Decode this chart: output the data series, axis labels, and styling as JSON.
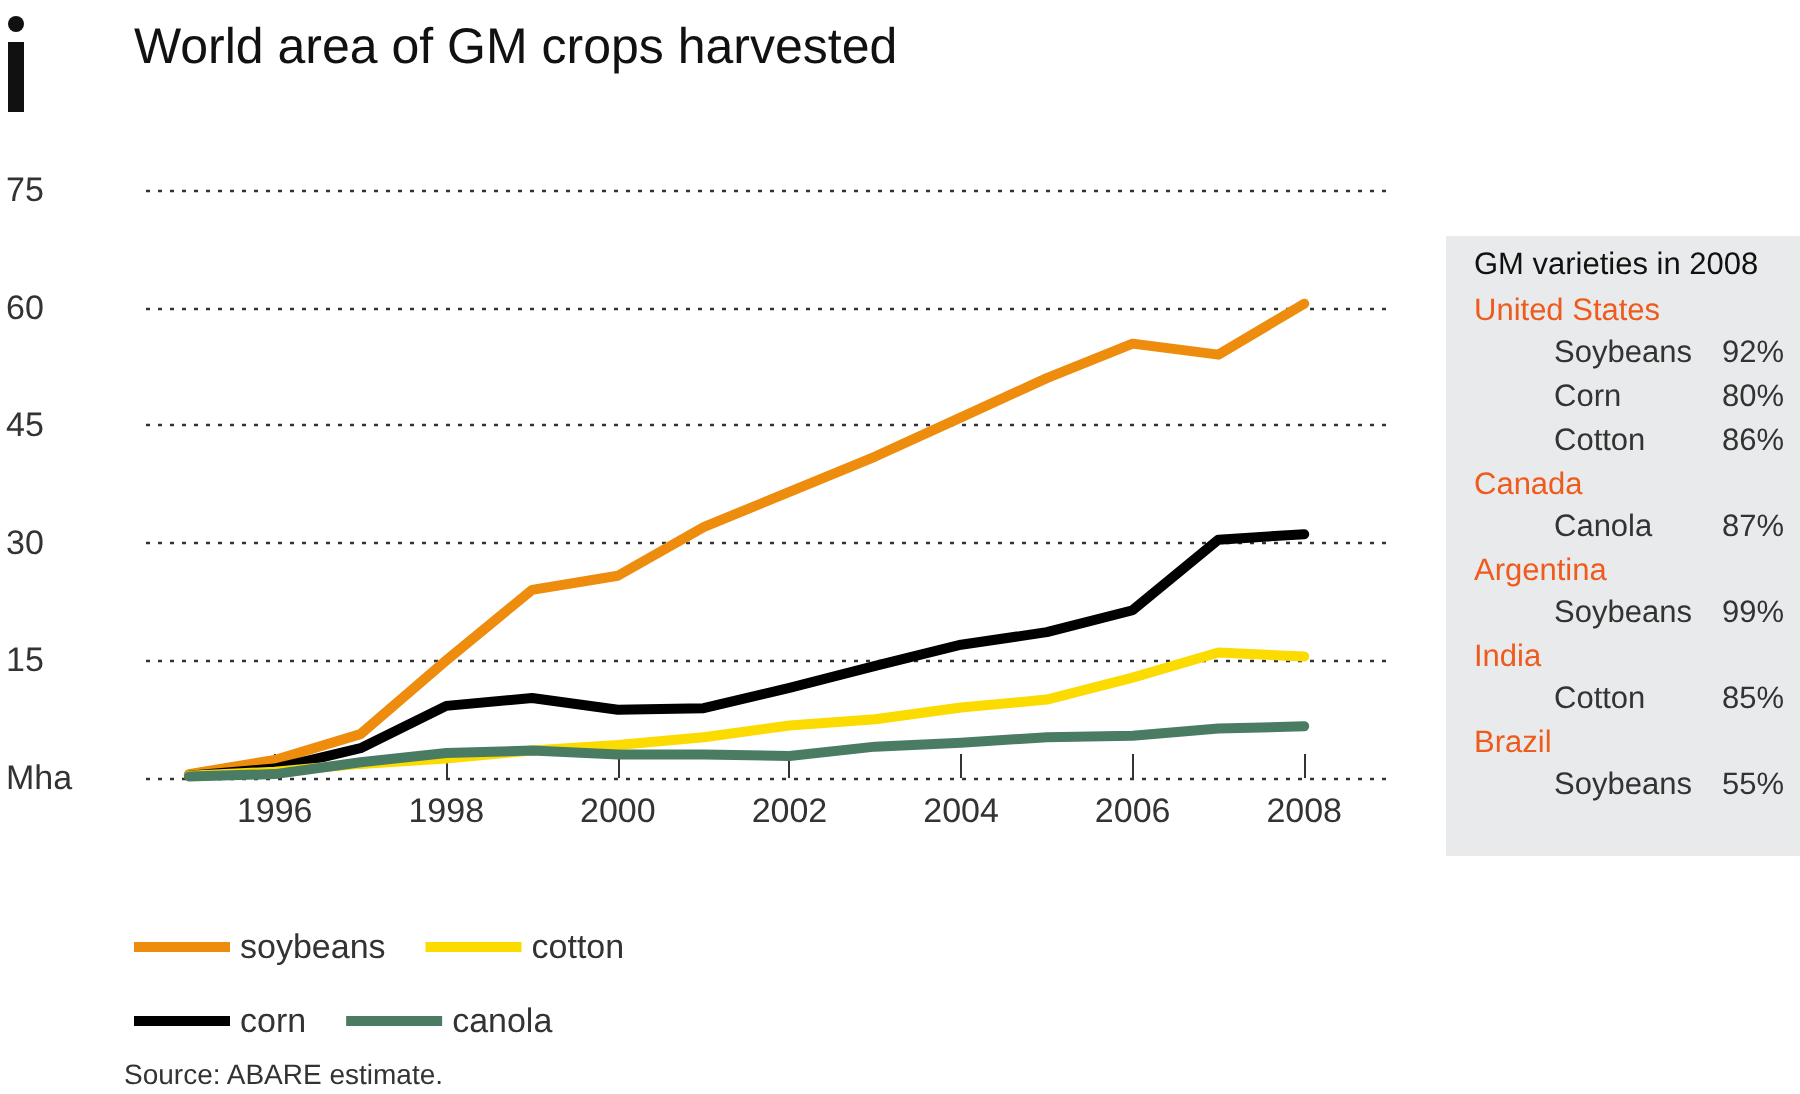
{
  "chart_data": [
    {
      "type": "line",
      "title": "World area of GM crops harvested",
      "x": [
        1995,
        1996,
        1997,
        1998,
        1999,
        2000,
        2001,
        2002,
        2003,
        2004,
        2005,
        2006,
        2007,
        2008
      ],
      "series": [
        {
          "name": "soybeans",
          "color": "#ee8c0e",
          "values": [
            0.5,
            2.3,
            5.6,
            15,
            24,
            25.8,
            32,
            36.5,
            41,
            46,
            51,
            55.4,
            54,
            60.5
          ]
        },
        {
          "name": "corn",
          "color": "#000000",
          "values": [
            0.3,
            1.2,
            3.8,
            9.2,
            10.2,
            8.7,
            8.9,
            11.5,
            14.3,
            17,
            18.6,
            21.4,
            30.4,
            31.1
          ]
        },
        {
          "name": "cotton",
          "color": "#fbdb00",
          "values": [
            0.3,
            0.8,
            1.8,
            2.5,
            3.5,
            4.2,
            5.2,
            6.7,
            7.5,
            9,
            10,
            12.8,
            16,
            15.5
          ]
        },
        {
          "name": "canola",
          "color": "#4a7c64",
          "values": [
            0.2,
            0.5,
            2,
            3.2,
            3.5,
            3,
            3,
            2.8,
            4,
            4.5,
            5.2,
            5.4,
            6.3,
            6.6
          ]
        }
      ],
      "xlim": [
        1994.5,
        2009
      ],
      "xticks": [
        1996,
        1998,
        2000,
        2002,
        2004,
        2006,
        2008
      ],
      "ylim": [
        0,
        75
      ],
      "yticks": [
        {
          "value": 0,
          "label": "Mha"
        },
        15,
        30,
        45,
        60,
        75
      ],
      "grid": "y",
      "legend": "bottom",
      "marker": "none",
      "line_style": "solid",
      "annotations": [
        "Source: ABARE estimate."
      ]
    },
    {
      "type": "other",
      "title": "GM varieties in 2008",
      "categories": [
        "United States",
        "Canada",
        "Argentina",
        "India",
        "Brazil"
      ],
      "cell_labels": [
        [
          [
            "Soybeans",
            "92%"
          ],
          [
            "Corn",
            "80%"
          ],
          [
            "Cotton",
            "86%"
          ]
        ],
        [
          [
            "Canola",
            "87%"
          ]
        ],
        [
          [
            "Soybeans",
            "99%"
          ]
        ],
        [
          [
            "Cotton",
            "85%"
          ]
        ],
        [
          [
            "Soybeans",
            "55%"
          ]
        ]
      ]
    }
  ]
}
